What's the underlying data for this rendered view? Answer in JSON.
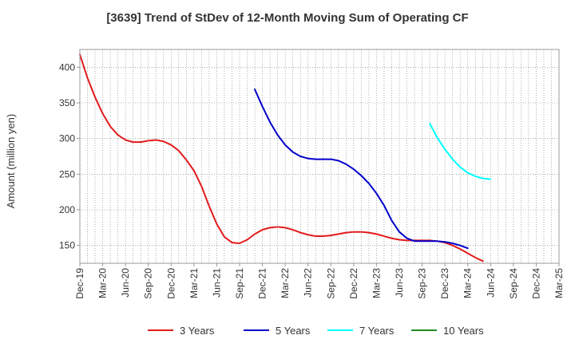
{
  "chart_data": {
    "type": "line",
    "title": "[3639]  Trend of StDev of 12-Month Moving Sum of Operating CF",
    "xlabel": "",
    "ylabel": "Amount (million yen)",
    "ylim": [
      125,
      425
    ],
    "yticks": [
      150,
      200,
      250,
      300,
      350,
      400
    ],
    "x_axis_ticks": [
      "Dec-19",
      "Mar-20",
      "Jun-20",
      "Sep-20",
      "Dec-20",
      "Mar-21",
      "Jun-21",
      "Sep-21",
      "Dec-21",
      "Mar-22",
      "Jun-22",
      "Sep-22",
      "Dec-22",
      "Mar-23",
      "Jun-23",
      "Sep-23",
      "Dec-23",
      "Mar-24",
      "Jun-24",
      "Sep-24",
      "Dec-24",
      "Mar-25"
    ],
    "x_month_range": [
      "Dec-19",
      "Mar-25"
    ],
    "grid": true,
    "legend_position": "bottom",
    "series": [
      {
        "name": "3 Years",
        "color": "#e31a1c",
        "points": [
          [
            "Dec-19",
            418
          ],
          [
            "Jan-20",
            385
          ],
          [
            "Feb-20",
            358
          ],
          [
            "Mar-20",
            335
          ],
          [
            "Apr-20",
            317
          ],
          [
            "May-20",
            305
          ],
          [
            "Jun-20",
            298
          ],
          [
            "Jul-20",
            295
          ],
          [
            "Aug-20",
            295
          ],
          [
            "Sep-20",
            297
          ],
          [
            "Oct-20",
            298
          ],
          [
            "Nov-20",
            296
          ],
          [
            "Dec-20",
            291
          ],
          [
            "Jan-21",
            283
          ],
          [
            "Feb-21",
            270
          ],
          [
            "Mar-21",
            255
          ],
          [
            "Apr-21",
            233
          ],
          [
            "May-21",
            205
          ],
          [
            "Jun-21",
            180
          ],
          [
            "Jul-21",
            162
          ],
          [
            "Aug-21",
            154
          ],
          [
            "Sep-21",
            153
          ],
          [
            "Oct-21",
            158
          ],
          [
            "Nov-21",
            166
          ],
          [
            "Dec-21",
            172
          ],
          [
            "Jan-22",
            175
          ],
          [
            "Feb-22",
            176
          ],
          [
            "Mar-22",
            175
          ],
          [
            "Apr-22",
            172
          ],
          [
            "May-22",
            168
          ],
          [
            "Jun-22",
            165
          ],
          [
            "Jul-22",
            163
          ],
          [
            "Aug-22",
            163
          ],
          [
            "Sep-22",
            164
          ],
          [
            "Oct-22",
            166
          ],
          [
            "Nov-22",
            168
          ],
          [
            "Dec-22",
            169
          ],
          [
            "Jan-23",
            169
          ],
          [
            "Feb-23",
            168
          ],
          [
            "Mar-23",
            166
          ],
          [
            "Apr-23",
            163
          ],
          [
            "May-23",
            160
          ],
          [
            "Jun-23",
            158
          ],
          [
            "Jul-23",
            157
          ],
          [
            "Aug-23",
            157
          ],
          [
            "Sep-23",
            157
          ],
          [
            "Oct-23",
            157
          ],
          [
            "Nov-23",
            156
          ],
          [
            "Dec-23",
            154
          ],
          [
            "Jan-24",
            150
          ],
          [
            "Feb-24",
            145
          ],
          [
            "Mar-24",
            139
          ],
          [
            "Apr-24",
            133
          ],
          [
            "May-24",
            128
          ]
        ]
      },
      {
        "name": "5 Years",
        "color": "#0000cc",
        "points": [
          [
            "Nov-21",
            369
          ],
          [
            "Dec-21",
            345
          ],
          [
            "Jan-22",
            323
          ],
          [
            "Feb-22",
            305
          ],
          [
            "Mar-22",
            291
          ],
          [
            "Apr-22",
            281
          ],
          [
            "May-22",
            275
          ],
          [
            "Jun-22",
            272
          ],
          [
            "Jul-22",
            271
          ],
          [
            "Aug-22",
            271
          ],
          [
            "Sep-22",
            271
          ],
          [
            "Oct-22",
            269
          ],
          [
            "Nov-22",
            264
          ],
          [
            "Dec-22",
            257
          ],
          [
            "Jan-23",
            248
          ],
          [
            "Feb-23",
            237
          ],
          [
            "Mar-23",
            223
          ],
          [
            "Apr-23",
            206
          ],
          [
            "May-23",
            185
          ],
          [
            "Jun-23",
            169
          ],
          [
            "Jul-23",
            160
          ],
          [
            "Aug-23",
            156
          ],
          [
            "Sep-23",
            156
          ],
          [
            "Oct-23",
            156
          ],
          [
            "Nov-23",
            156
          ],
          [
            "Dec-23",
            155
          ],
          [
            "Jan-24",
            153
          ],
          [
            "Feb-24",
            150
          ],
          [
            "Mar-24",
            146
          ]
        ]
      },
      {
        "name": "7 Years",
        "color": "#00ffff",
        "points": [
          [
            "Oct-23",
            321
          ],
          [
            "Nov-23",
            301
          ],
          [
            "Dec-23",
            285
          ],
          [
            "Jan-24",
            271
          ],
          [
            "Feb-24",
            260
          ],
          [
            "Mar-24",
            252
          ],
          [
            "Apr-24",
            247
          ],
          [
            "May-24",
            244
          ],
          [
            "Jun-24",
            243
          ]
        ]
      },
      {
        "name": "10 Years",
        "color": "#228b22",
        "points": []
      }
    ]
  }
}
